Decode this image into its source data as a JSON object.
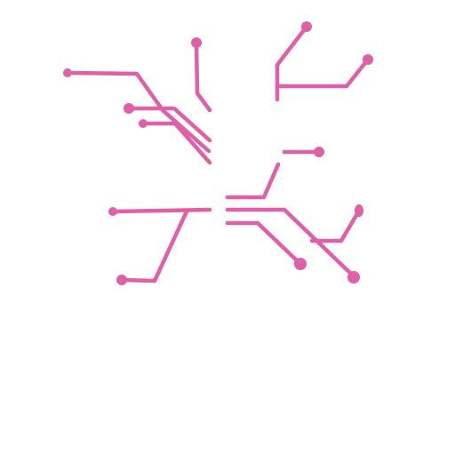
{
  "background_color": "#ffffff",
  "circuit": {
    "trace_color": "#e060a8",
    "pad_color": "#e060a8",
    "icon_name": "circuit-traces-icon",
    "trace_count": 13
  }
}
